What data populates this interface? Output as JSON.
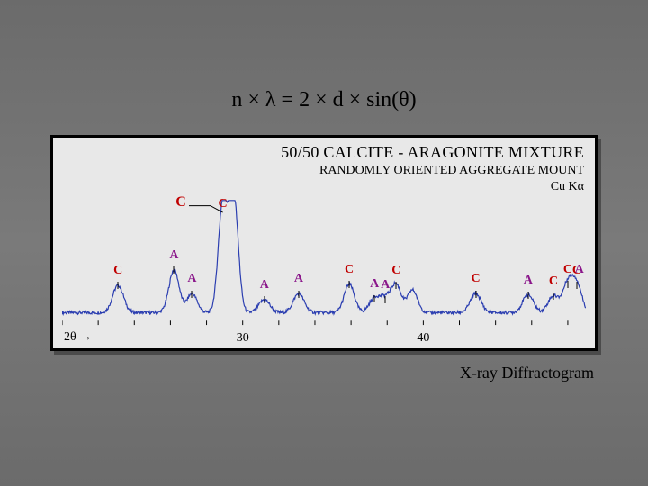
{
  "equation": "n × λ = 2 × d × sin(θ)",
  "caption": "X-ray Diffractogram",
  "chart": {
    "type": "line-spectrum",
    "title_line1": "50/50 CALCITE - ARAGONITE MIXTURE",
    "title_line2": "RANDOMLY ORIENTED AGGREGATE MOUNT",
    "title_line3": "Cu Kα",
    "background_color": "#e8e8e8",
    "border_color": "#000000",
    "line_color": "#2a3db0",
    "line_width": 1.2,
    "xlim": [
      20,
      49
    ],
    "xaxis": {
      "ticks": [
        30,
        40
      ],
      "label": "2θ",
      "arrow": "→",
      "minor_step": 2
    },
    "ylim": [
      0,
      100
    ],
    "baseline": 6,
    "noise": 1.4,
    "peaks": [
      {
        "x": 23.1,
        "h": 23,
        "w": 0.3,
        "label": "C",
        "cls": "c",
        "tick": true
      },
      {
        "x": 26.2,
        "h": 36,
        "w": 0.28,
        "label": "A",
        "cls": "a",
        "tick": true
      },
      {
        "x": 27.2,
        "h": 16,
        "w": 0.28,
        "label": "A",
        "cls": "a",
        "tick": true
      },
      {
        "x": 28.9,
        "h": 92,
        "w": 0.25,
        "label": "C",
        "cls": "c",
        "tick": false
      },
      {
        "x": 29.5,
        "h": 99,
        "w": 0.25
      },
      {
        "x": 31.2,
        "h": 11,
        "w": 0.3,
        "label": "A",
        "cls": "a",
        "tick": true
      },
      {
        "x": 33.1,
        "h": 16,
        "w": 0.3,
        "label": "A",
        "cls": "a",
        "tick": true
      },
      {
        "x": 35.9,
        "h": 24,
        "w": 0.28,
        "label": "C",
        "cls": "c",
        "tick": true
      },
      {
        "x": 37.3,
        "h": 12,
        "w": 0.3,
        "label": "A",
        "cls": "a",
        "tick": true
      },
      {
        "x": 37.9,
        "h": 11,
        "w": 0.3,
        "label": "A",
        "cls": "a",
        "tick": true
      },
      {
        "x": 38.5,
        "h": 23,
        "w": 0.28,
        "label": "C",
        "cls": "c",
        "tick": true
      },
      {
        "x": 39.4,
        "h": 19,
        "w": 0.28
      },
      {
        "x": 42.9,
        "h": 16,
        "w": 0.3,
        "label": "C",
        "cls": "c",
        "tick": true
      },
      {
        "x": 45.8,
        "h": 15,
        "w": 0.3,
        "label": "A",
        "cls": "a",
        "tick": true
      },
      {
        "x": 47.2,
        "h": 14,
        "w": 0.3,
        "label": "C",
        "cls": "c",
        "tick": true
      },
      {
        "x": 48.0,
        "h": 24,
        "w": 0.28,
        "label": "C",
        "cls": "c",
        "tick": true,
        "dual": "A"
      },
      {
        "x": 48.5,
        "h": 23,
        "w": 0.28,
        "label": "C",
        "cls": "c",
        "tick": true
      }
    ],
    "big_c_label": {
      "x": 28.9,
      "txt": "C"
    },
    "colors": {
      "C": "#c00000",
      "A": "#8a168a"
    }
  }
}
